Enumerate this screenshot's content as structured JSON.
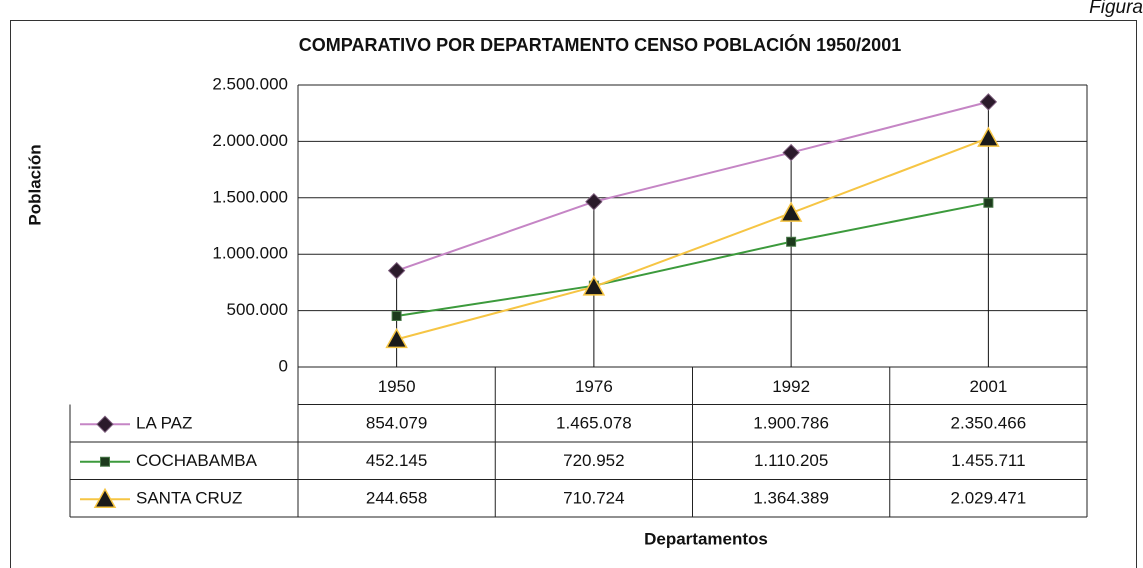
{
  "header": {
    "label": "Figura"
  },
  "chart_data": {
    "type": "line",
    "title": "COMPARATIVO POR DEPARTAMENTO CENSO POBLACIÓN 1950/2001",
    "y_label": "Población",
    "x_label": "Departamentos",
    "categories": [
      "1950",
      "1976",
      "1992",
      "2001"
    ],
    "series": [
      {
        "name": "LA PAZ",
        "color": "#c585c5",
        "marker": "diamond",
        "marker_color": "#2b1a2b",
        "values": [
          854079,
          1465078,
          1900786,
          2350466
        ],
        "value_labels": [
          "854.079",
          "1.465.078",
          "1.900.786",
          "2.350.466"
        ]
      },
      {
        "name": "COCHABAMBA",
        "color": "#3c9a3c",
        "marker": "square",
        "marker_color": "#1c3a1c",
        "values": [
          452145,
          720952,
          1110205,
          1455711
        ],
        "value_labels": [
          "452.145",
          "720.952",
          "1.110.205",
          "1.455.711"
        ]
      },
      {
        "name": "SANTA CRUZ",
        "color": "#f6c544",
        "marker": "triangle",
        "marker_color": "#1a1a1a",
        "values": [
          244658,
          710724,
          1364389,
          2029471
        ],
        "value_labels": [
          "244.658",
          "710.724",
          "1.364.389",
          "2.029.471"
        ]
      }
    ],
    "ylim": [
      0,
      2500000
    ],
    "yticks": [
      0,
      {
        "value": 500000,
        "label": "500.000"
      },
      {
        "value": 1000000,
        "label": "1.000.000"
      },
      {
        "value": 1500000,
        "label": "1.500.000"
      },
      {
        "value": 2000000,
        "label": "2.000.000"
      },
      {
        "value": 2500000,
        "label": "2.500.000"
      }
    ],
    "grid": true,
    "drop_lines": true
  }
}
